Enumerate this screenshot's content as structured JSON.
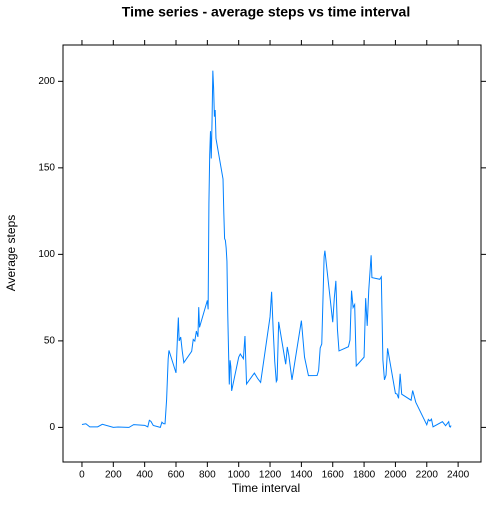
{
  "chart_data": {
    "type": "line",
    "title": "Time series - average steps vs time interval",
    "xlabel": "Time interval",
    "ylabel": "Average steps",
    "x": [
      0,
      25,
      50,
      100,
      130,
      200,
      230,
      300,
      330,
      400,
      420,
      430,
      440,
      455,
      500,
      510,
      520,
      530,
      540,
      550,
      555,
      600,
      610,
      615,
      620,
      630,
      640,
      650,
      700,
      710,
      720,
      730,
      740,
      745,
      750,
      800,
      805,
      810,
      815,
      820,
      825,
      830,
      835,
      840,
      845,
      850,
      855,
      900,
      905,
      910,
      915,
      920,
      925,
      930,
      935,
      940,
      945,
      950,
      955,
      1000,
      1010,
      1030,
      1040,
      1050,
      1100,
      1120,
      1140,
      1200,
      1210,
      1220,
      1230,
      1240,
      1245,
      1255,
      1300,
      1310,
      1320,
      1340,
      1400,
      1420,
      1445,
      1500,
      1510,
      1520,
      1530,
      1545,
      1550,
      1600,
      1610,
      1620,
      1630,
      1640,
      1700,
      1710,
      1720,
      1730,
      1740,
      1750,
      1800,
      1810,
      1820,
      1830,
      1845,
      1850,
      1900,
      1910,
      1920,
      1930,
      1940,
      1950,
      2000,
      2010,
      2020,
      2030,
      2040,
      2100,
      2110,
      2130,
      2200,
      2210,
      2220,
      2230,
      2240,
      2300,
      2320,
      2340,
      2345,
      2350,
      2355
    ],
    "series": [
      {
        "name": "Average steps",
        "color": "#0080ff",
        "values": [
          1.7,
          2.1,
          0.3,
          0.3,
          1.8,
          0,
          0.2,
          0,
          1.6,
          1.2,
          0.3,
          4.1,
          3.5,
          1.1,
          0,
          3.0,
          2.2,
          2.1,
          16,
          39.5,
          44.5,
          31.5,
          53.8,
          63.5,
          50,
          52.2,
          44.0,
          37.4,
          44,
          50.8,
          49.9,
          55.7,
          52.3,
          69.5,
          57.8,
          73.4,
          68.2,
          129.4,
          157.5,
          171.2,
          155.4,
          177.3,
          206.2,
          195.9,
          179.6,
          183.4,
          167.0,
          143.5,
          124.0,
          109.1,
          108.1,
          103.7,
          96.0,
          66.2,
          45.2,
          24.8,
          38.8,
          35,
          21.1,
          40.6,
          42.4,
          39.7,
          52.8,
          25.1,
          31.4,
          28.4,
          26.0,
          63.9,
          78.4,
          56.4,
          38,
          26.5,
          27.4,
          61,
          36.5,
          46.5,
          41.5,
          27.4,
          61.7,
          40.6,
          29.9,
          30.0,
          32.9,
          45.9,
          48.2,
          98.6,
          102.1,
          60.8,
          74.7,
          84.7,
          56.7,
          44.2,
          46.6,
          50.5,
          79.0,
          69.3,
          71.0,
          35.5,
          40.6,
          74.7,
          58.7,
          79.5,
          99.5,
          86.6,
          85.6,
          87,
          39,
          27.5,
          30.2,
          45.7,
          19.6,
          19.3,
          16.8,
          31.0,
          19.2,
          15.7,
          21.3,
          14.5,
          1.5,
          4.6,
          3.7,
          4.8,
          0.3,
          3.3,
          0.96,
          3.3,
          0.6,
          0.2,
          1.1
        ]
      }
    ],
    "xlim": [
      -121,
      2546
    ],
    "ylim": [
      -20,
      221
    ],
    "xticks": [
      0,
      200,
      400,
      600,
      800,
      1000,
      1200,
      1400,
      1600,
      1800,
      2000,
      2200,
      2400
    ],
    "yticks": [
      0,
      50,
      100,
      150,
      200
    ]
  }
}
